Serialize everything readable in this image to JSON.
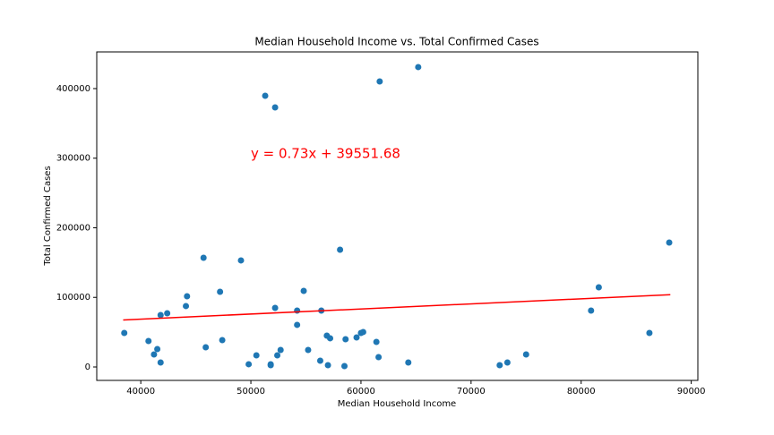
{
  "chart_data": {
    "type": "scatter",
    "title": "Median Household Income vs. Total Confirmed Cases",
    "x_label": "Median Household Income",
    "y_label": "Total Confirmed Cases",
    "annotation": "y = 0.73x + 39551.68",
    "color": "#1f77b4",
    "xlim": [
      36000,
      90600
    ],
    "ylim": [
      -19300,
      452700
    ],
    "xticks": [
      40000,
      50000,
      60000,
      70000,
      80000,
      90000
    ],
    "yticks": [
      0,
      100000,
      200000,
      300000,
      400000
    ],
    "x": [
      38500,
      40700,
      41200,
      41500,
      41800,
      41800,
      42400,
      44100,
      44200,
      45700,
      45900,
      47200,
      47400,
      49100,
      49800,
      50500,
      51300,
      51800,
      51800,
      52200,
      52200,
      52400,
      52700,
      54200,
      54200,
      54800,
      55200,
      56300,
      56400,
      56900,
      57000,
      57200,
      58100,
      58500,
      58600,
      59600,
      60000,
      60200,
      61400,
      61600,
      61700,
      64300,
      65200,
      72600,
      73300,
      75000,
      80900,
      81600,
      86200,
      88000
    ],
    "values": [
      48900,
      37300,
      18000,
      25700,
      6400,
      74600,
      77200,
      87500,
      101600,
      156900,
      28300,
      108000,
      38600,
      153100,
      3900,
      16700,
      389700,
      3900,
      2600,
      373000,
      84900,
      16700,
      24400,
      60500,
      81000,
      109300,
      24400,
      9000,
      81000,
      45000,
      2600,
      41200,
      168500,
      1300,
      39900,
      42400,
      48900,
      50200,
      36000,
      14100,
      410300,
      6400,
      430900,
      2600,
      6400,
      18000,
      81000,
      114500,
      48900,
      178800
    ],
    "fit": {
      "color": "#ff0000",
      "x": [
        38400,
        88100
      ],
      "values": [
        67584,
        103865
      ]
    }
  }
}
